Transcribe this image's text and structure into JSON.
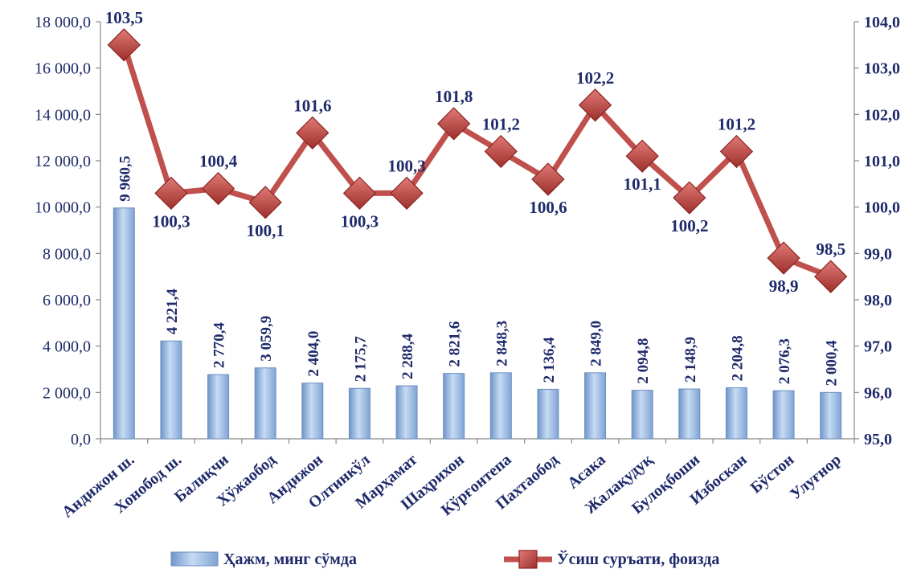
{
  "chart_data": {
    "type": "bar+line",
    "categories": [
      "Андижон ш.",
      "Хонобод ш.",
      "Балиқчи",
      "Хўжаобод",
      "Андижон",
      "Олтинкўл",
      "Марҳамат",
      "Шаҳрихон",
      "Кўрғонтепа",
      "Пахтаобод",
      "Асака",
      "Жалақудуқ",
      "Булоқбоши",
      "Избоскан",
      "Бўстон",
      "Улуғнор"
    ],
    "series": [
      {
        "name": "Ҳажм, минг сўмда",
        "type": "bar",
        "axis": "left",
        "values": [
          9960.5,
          4221.4,
          2770.4,
          3059.9,
          2404.0,
          2175.7,
          2288.4,
          2821.6,
          2848.3,
          2136.4,
          2849.0,
          2094.8,
          2148.9,
          2204.8,
          2076.3,
          2000.4
        ],
        "labels": [
          "9 960,5",
          "4 221,4",
          "2 770,4",
          "3 059,9",
          "2 404,0",
          "2 175,7",
          "2 288,4",
          "2 821,6",
          "2 848,3",
          "2 136,4",
          "2 849,0",
          "2 094,8",
          "2 148,9",
          "2 204,8",
          "2 076,3",
          "2 000,4"
        ],
        "color": "#8fb4e3"
      },
      {
        "name": "Ўсиш суръати, фоизда",
        "type": "line",
        "axis": "right",
        "values": [
          103.5,
          100.3,
          100.4,
          100.1,
          101.6,
          100.3,
          100.3,
          101.8,
          101.2,
          100.6,
          102.2,
          101.1,
          100.2,
          101.2,
          98.9,
          98.5
        ],
        "labels": [
          "103,5",
          "100,3",
          "100,4",
          "100,1",
          "101,6",
          "100,3",
          "100,3",
          "101,8",
          "101,2",
          "100,6",
          "102,2",
          "101,1",
          "100,2",
          "101,2",
          "98,9",
          "98,5"
        ],
        "label_position": [
          "above",
          "below",
          "above",
          "below",
          "above",
          "below",
          "above",
          "above",
          "above",
          "below",
          "above",
          "below",
          "below",
          "above",
          "below",
          "above"
        ],
        "color": "#c0504d"
      }
    ],
    "yleft": {
      "lim": [
        0,
        18000
      ],
      "ticks": [
        0,
        2000,
        4000,
        6000,
        8000,
        10000,
        12000,
        14000,
        16000,
        18000
      ],
      "tick_labels": [
        "0,0",
        "2 000,0",
        "4 000,0",
        "6 000,0",
        "8 000,0",
        "10 000,0",
        "12 000,0",
        "14 000,0",
        "16 000,0",
        "18 000,0"
      ]
    },
    "yright": {
      "lim": [
        95,
        104
      ],
      "ticks": [
        95,
        96,
        97,
        98,
        99,
        100,
        101,
        102,
        103,
        104
      ],
      "tick_labels": [
        "95,0",
        "96,0",
        "97,0",
        "98,0",
        "99,0",
        "100,0",
        "101,0",
        "102,0",
        "103,0",
        "104,0"
      ]
    },
    "grid": false,
    "legend": "bottom"
  }
}
